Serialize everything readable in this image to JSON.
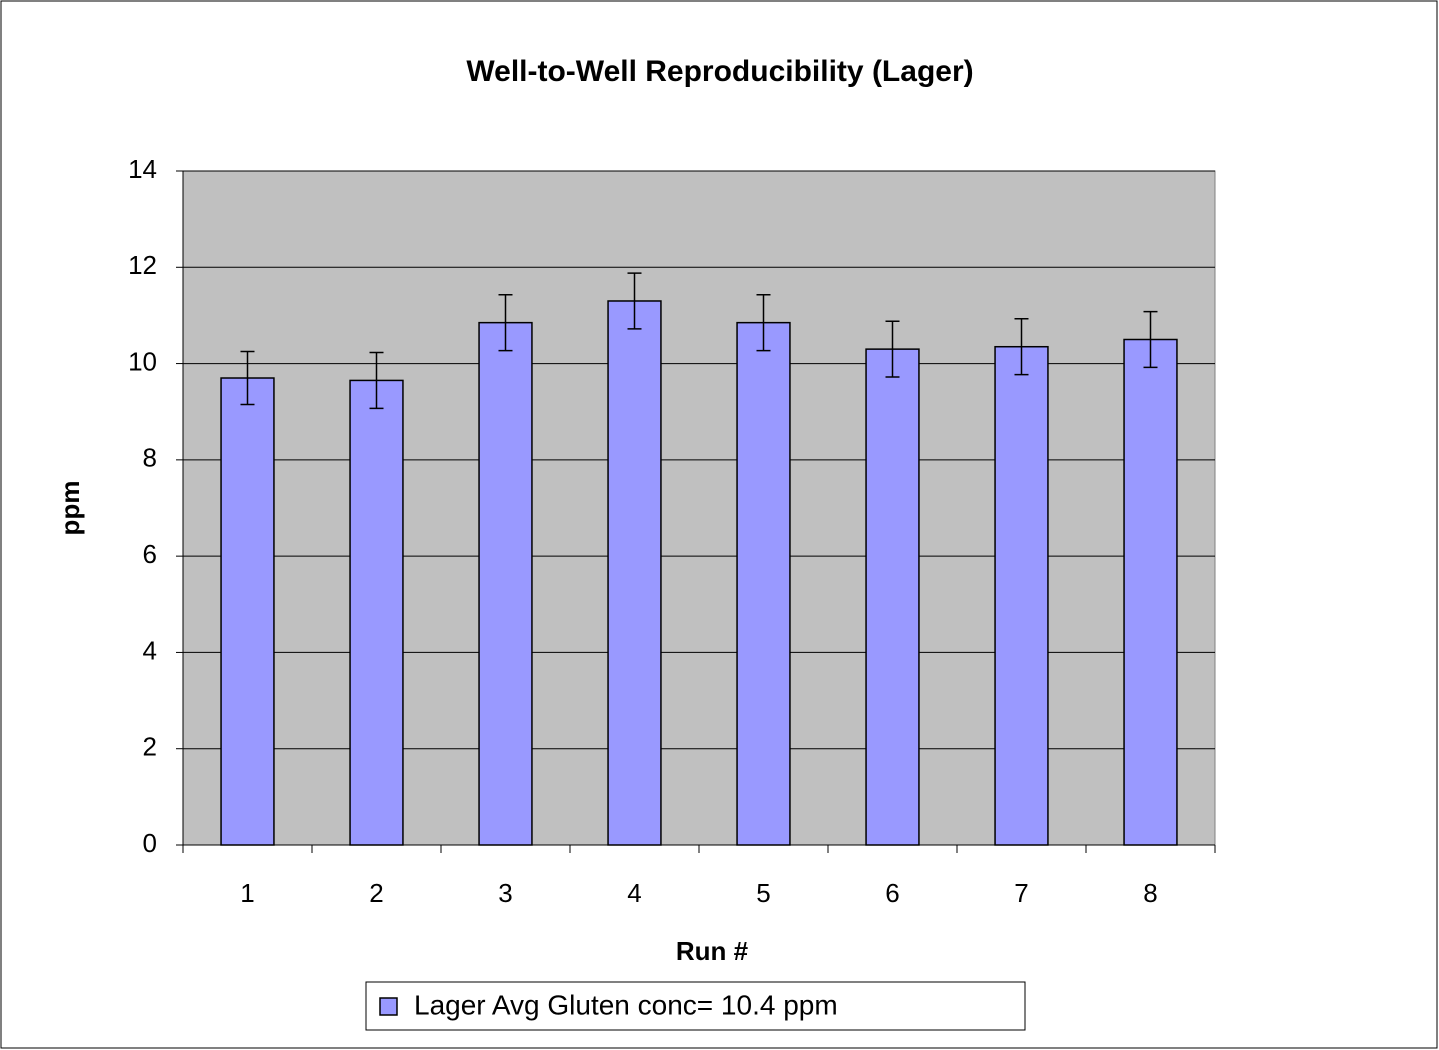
{
  "chart_data": {
    "type": "bar",
    "title": "Well-to-Well Reproducibility (Lager)",
    "x_label": "Run #",
    "y_label": "ppm",
    "categories": [
      "1",
      "2",
      "3",
      "4",
      "5",
      "6",
      "7",
      "8"
    ],
    "series": [
      {
        "name": "Lager Avg Gluten conc= 10.4 ppm",
        "color": "#9999ff",
        "values": [
          9.7,
          9.65,
          10.85,
          11.3,
          10.85,
          10.3,
          10.35,
          10.5
        ],
        "errors": [
          0.55,
          0.58,
          0.58,
          0.58,
          0.58,
          0.58,
          0.58,
          0.58
        ]
      }
    ],
    "ylim": [
      0,
      14
    ],
    "yticks": [
      0,
      2,
      4,
      6,
      8,
      10,
      12,
      14
    ],
    "grid": true,
    "plot_background": "#c0c0c0",
    "legend": "bottom"
  }
}
